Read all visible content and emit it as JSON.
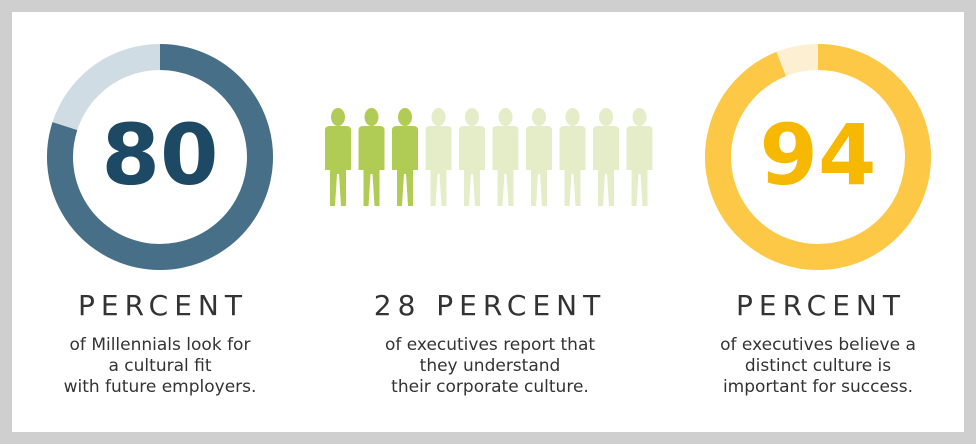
{
  "chart_data": [
    {
      "type": "donut",
      "value": 80,
      "ylim": [
        0,
        100
      ],
      "color": "#486f88",
      "track_color": "#d0dce3",
      "text_color": "#1d4965",
      "heading": "PERCENT",
      "description": [
        "of Millennials look for",
        "a cultural fit",
        "with future employers."
      ]
    },
    {
      "type": "pictogram",
      "value": 28,
      "unit": "PERCENT",
      "icons_total": 10,
      "icons_filled": 3,
      "color": "#b1cc55",
      "track_color": "#e4edc8",
      "description": [
        "of executives report that",
        "they understand",
        "their corporate culture."
      ]
    },
    {
      "type": "donut",
      "value": 94,
      "ylim": [
        0,
        100
      ],
      "color": "#fcc845",
      "track_color": "#fdf0d2",
      "text_color": "#f6b800",
      "heading": "PERCENT",
      "description": [
        "of executives  believe a",
        "distinct culture is",
        "important for success."
      ]
    }
  ]
}
